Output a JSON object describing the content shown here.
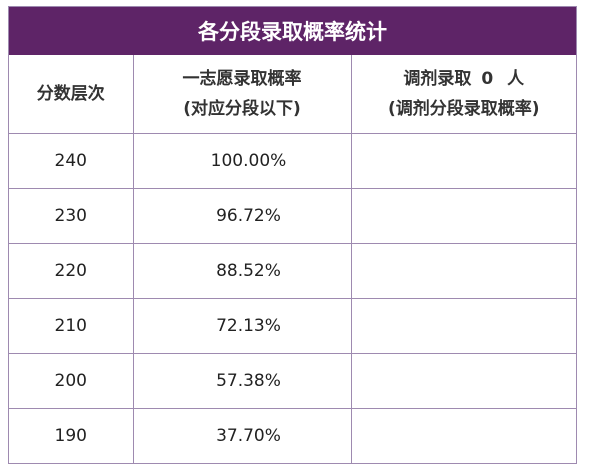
{
  "title": "各分段录取概率统计",
  "headers": {
    "score": "分数层次",
    "first_choice_line1": "一志愿录取概率",
    "first_choice_line2": "(对应分段以下)",
    "adjust_prefix": "调剂录取",
    "adjust_count": "0",
    "adjust_suffix": "人",
    "adjust_line2": "(调剂分段录取概率)"
  },
  "rows": [
    {
      "score": "240",
      "rate": "100.00%",
      "adjust": ""
    },
    {
      "score": "230",
      "rate": "96.72%",
      "adjust": ""
    },
    {
      "score": "220",
      "rate": "88.52%",
      "adjust": ""
    },
    {
      "score": "210",
      "rate": "72.13%",
      "adjust": ""
    },
    {
      "score": "200",
      "rate": "57.38%",
      "adjust": ""
    },
    {
      "score": "190",
      "rate": "37.70%",
      "adjust": ""
    }
  ]
}
